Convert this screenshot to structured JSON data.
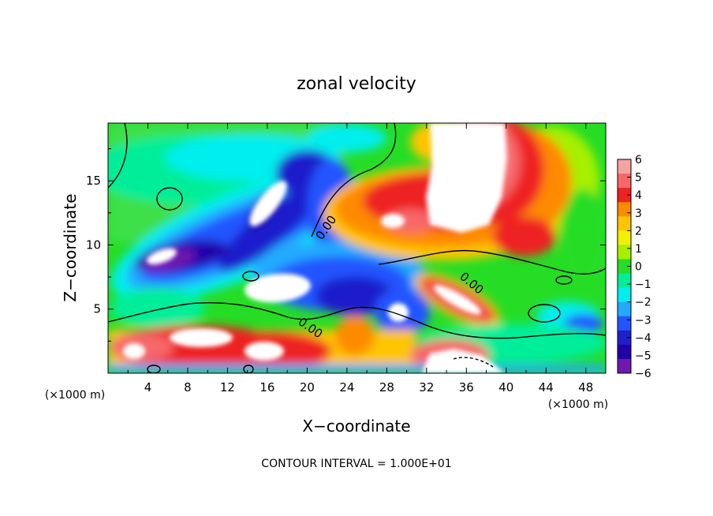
{
  "chart_data": {
    "type": "heatmap",
    "title": "zonal velocity",
    "xlabel": "X−coordinate",
    "ylabel": "Z−coordinate",
    "x_unit_left": "(×1000 m)",
    "x_unit_right": "(×1000 m)",
    "xlim": [
      0,
      50
    ],
    "ylim": [
      0,
      19.5
    ],
    "x_ticks": [
      4,
      8,
      12,
      16,
      20,
      24,
      28,
      32,
      36,
      40,
      44,
      48
    ],
    "y_ticks": [
      5,
      10,
      15
    ],
    "footer": "CONTOUR INTERVAL = 1.000E+01",
    "colorbar": {
      "min": -6,
      "max": 6,
      "labels": [
        "6",
        "5",
        "4",
        "3",
        "2",
        "1",
        "0",
        "−1",
        "−2",
        "−3",
        "−4",
        "−5",
        "−6"
      ],
      "colors": [
        "#f4a3a3",
        "#f7676a",
        "#ee2222",
        "#fe8a00",
        "#ffc500",
        "#f0f000",
        "#a6f000",
        "#25dd25",
        "#00ee99",
        "#00eeee",
        "#22aaff",
        "#2255ff",
        "#1f1fcc",
        "#2200aa",
        "#6f19b0"
      ]
    },
    "contour_labels": [
      "0.00",
      "0.00",
      "0.00"
    ]
  }
}
